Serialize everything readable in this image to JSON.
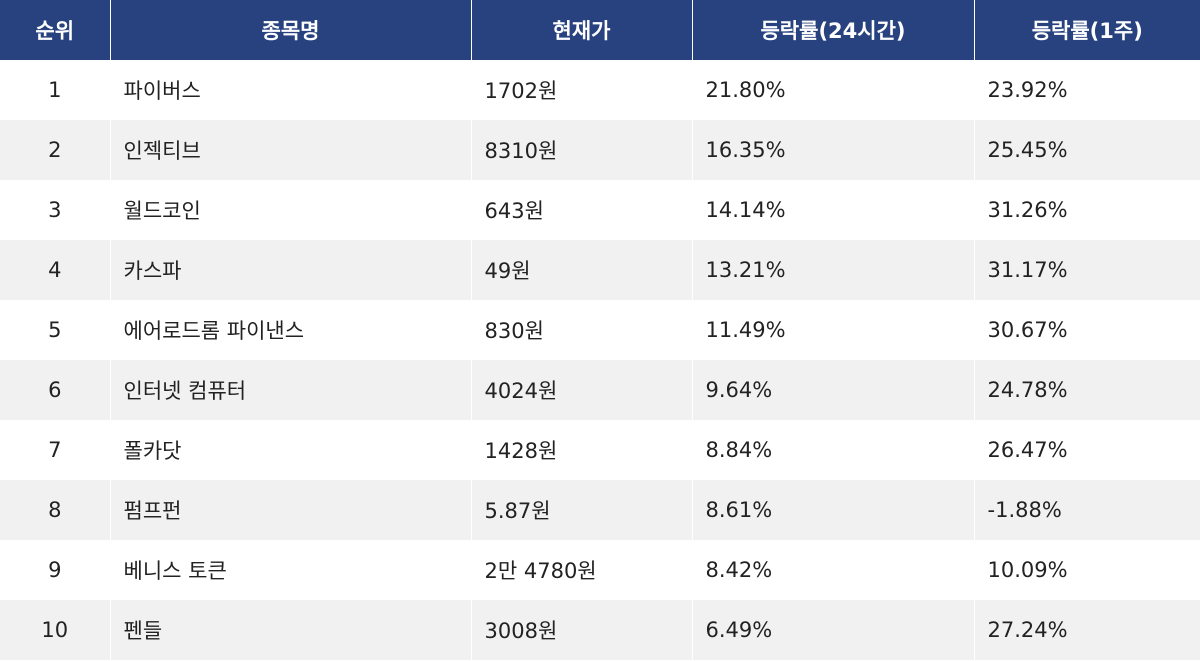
{
  "table": {
    "headers": {
      "rank": "순위",
      "name": "종목명",
      "price": "현재가",
      "change_24h": "등락률(24시간)",
      "change_1w": "등락률(1주)"
    },
    "rows": [
      {
        "rank": "1",
        "name": "파이버스",
        "price": "1702원",
        "change_24h": "21.80%",
        "change_1w": "23.92%"
      },
      {
        "rank": "2",
        "name": "인젝티브",
        "price": "8310원",
        "change_24h": "16.35%",
        "change_1w": "25.45%"
      },
      {
        "rank": "3",
        "name": "월드코인",
        "price": "643원",
        "change_24h": "14.14%",
        "change_1w": "31.26%"
      },
      {
        "rank": "4",
        "name": "카스파",
        "price": "49원",
        "change_24h": "13.21%",
        "change_1w": "31.17%"
      },
      {
        "rank": "5",
        "name": "에어로드롬 파이낸스",
        "price": "830원",
        "change_24h": "11.49%",
        "change_1w": "30.67%"
      },
      {
        "rank": "6",
        "name": "인터넷 컴퓨터",
        "price": "4024원",
        "change_24h": "9.64%",
        "change_1w": "24.78%"
      },
      {
        "rank": "7",
        "name": "폴카닷",
        "price": "1428원",
        "change_24h": "8.84%",
        "change_1w": "26.47%"
      },
      {
        "rank": "8",
        "name": "펌프펀",
        "price": "5.87원",
        "change_24h": "8.61%",
        "change_1w": "-1.88%"
      },
      {
        "rank": "9",
        "name": "베니스 토큰",
        "price": "2만 4780원",
        "change_24h": "8.42%",
        "change_1w": "10.09%"
      },
      {
        "rank": "10",
        "name": "펜들",
        "price": "3008원",
        "change_24h": "6.49%",
        "change_1w": "27.24%"
      }
    ]
  },
  "colors": {
    "header_bg": "#27427f",
    "header_text": "#ffffff",
    "row_alt_bg": "#f1f1f1",
    "text": "#222222"
  }
}
